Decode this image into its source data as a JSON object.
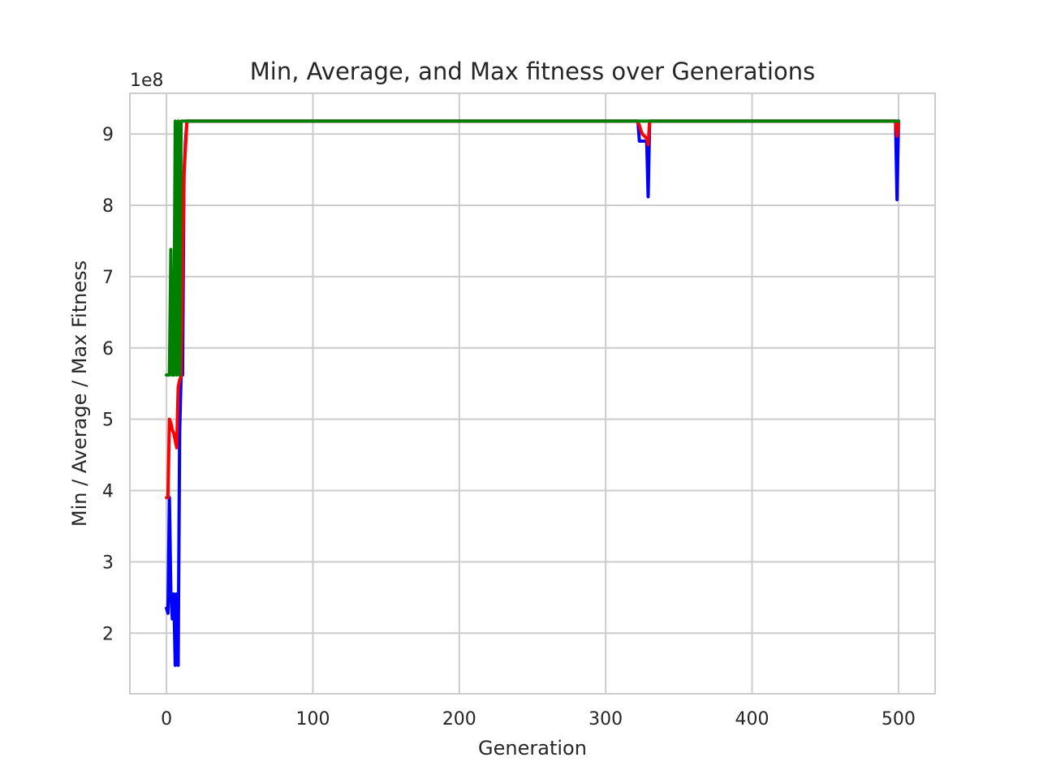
{
  "chart_data": {
    "type": "line",
    "title": "Min, Average, and Max fitness over Generations",
    "xlabel": "Generation",
    "ylabel": "Min / Average / Max Fitness",
    "y_offset_label": "1e8",
    "y_scale_factor": 100000000,
    "xlim": [
      -25,
      525
    ],
    "ylim": [
      115000000,
      957000000
    ],
    "x_ticks": [
      0,
      100,
      200,
      300,
      400,
      500
    ],
    "x_tick_labels": [
      "0",
      "100",
      "200",
      "300",
      "400",
      "500"
    ],
    "y_ticks": [
      200000000,
      300000000,
      400000000,
      500000000,
      600000000,
      700000000,
      800000000,
      900000000
    ],
    "y_tick_labels": [
      "2",
      "3",
      "4",
      "5",
      "6",
      "7",
      "8",
      "9"
    ],
    "grid": true,
    "series": [
      {
        "color": "#0000ff",
        "x": [
          0,
          1,
          2,
          3,
          4,
          5,
          6,
          7,
          8,
          9,
          10,
          11,
          12,
          13,
          14,
          321,
          322,
          323,
          324,
          325,
          326,
          327,
          328,
          329,
          330,
          331,
          498,
          499,
          500
        ],
        "y": [
          235000000,
          228000000,
          390000000,
          255000000,
          220000000,
          255000000,
          155000000,
          255000000,
          155000000,
          480000000,
          562000000,
          562000000,
          845000000,
          890000000,
          918000000,
          918000000,
          918000000,
          890000000,
          890000000,
          890000000,
          890000000,
          890000000,
          890000000,
          812000000,
          918000000,
          918000000,
          918000000,
          808000000,
          918000000
        ]
      },
      {
        "color": "#ff0000",
        "x": [
          0,
          1,
          2,
          3,
          4,
          5,
          6,
          7,
          8,
          9,
          10,
          11,
          12,
          13,
          14,
          321,
          322,
          323,
          324,
          325,
          326,
          327,
          328,
          329,
          330,
          331,
          498,
          499,
          500
        ],
        "y": [
          390000000,
          390000000,
          500000000,
          495000000,
          485000000,
          480000000,
          470000000,
          460000000,
          545000000,
          555000000,
          560000000,
          700000000,
          845000000,
          880000000,
          918000000,
          918000000,
          916000000,
          912000000,
          905000000,
          900000000,
          898000000,
          896000000,
          894000000,
          885000000,
          918000000,
          918000000,
          918000000,
          897000000,
          918000000
        ]
      },
      {
        "color": "#008000",
        "x": [
          0,
          1,
          2,
          3,
          4,
          5,
          6,
          7,
          8,
          9,
          10,
          11,
          12,
          500
        ],
        "y": [
          562000000,
          562000000,
          562000000,
          738000000,
          562000000,
          562000000,
          918000000,
          562000000,
          918000000,
          562000000,
          918000000,
          918000000,
          918000000,
          918000000
        ]
      }
    ]
  }
}
